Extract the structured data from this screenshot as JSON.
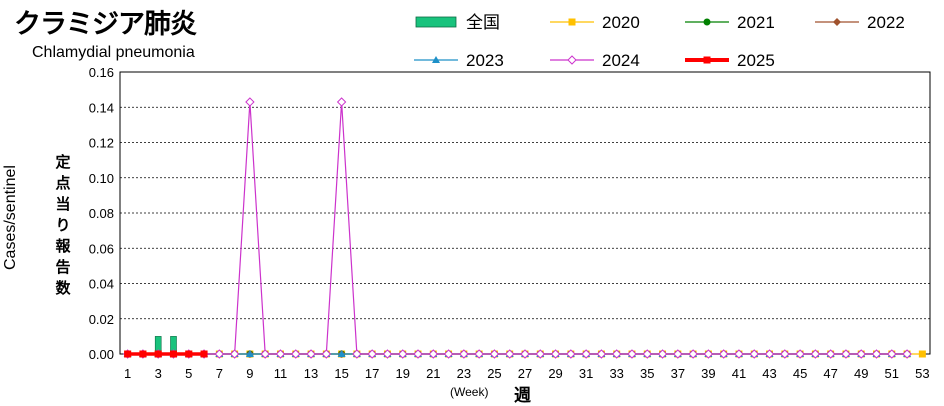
{
  "title_jp": "クラミジア肺炎",
  "title_en": "Chlamydial pneumonia",
  "chart_data": {
    "type": "line",
    "ylabel_en": "Cases/sentinel",
    "ylabel_jp": "定点当り報告数",
    "xunit_en": "(Week)",
    "xunit_jp": "週",
    "ylim": [
      0,
      0.16
    ],
    "y_ticks": [
      "0.00",
      "0.02",
      "0.04",
      "0.06",
      "0.08",
      "0.10",
      "0.12",
      "0.14",
      "0.16"
    ],
    "x_ticks": [
      "1",
      "3",
      "5",
      "7",
      "9",
      "11",
      "13",
      "15",
      "17",
      "19",
      "21",
      "23",
      "25",
      "27",
      "29",
      "31",
      "33",
      "35",
      "37",
      "39",
      "41",
      "43",
      "45",
      "47",
      "49",
      "51",
      "53"
    ],
    "weeks": 53,
    "grid": true,
    "legend_position": "top",
    "national": {
      "name": "全国",
      "color": "#19c37d",
      "values": [
        0,
        0,
        0.01,
        0.01,
        0,
        0,
        0,
        0,
        0,
        0,
        0,
        0,
        0,
        0,
        0,
        0,
        0,
        0,
        0,
        0,
        0,
        0,
        0,
        0,
        0,
        0,
        0,
        0,
        0,
        0,
        0,
        0,
        0,
        0,
        0,
        0,
        0,
        0,
        0,
        0,
        0,
        0,
        0,
        0,
        0,
        0,
        0,
        0,
        0,
        0,
        0,
        0,
        0
      ]
    },
    "series": [
      {
        "name": "2020",
        "color": "#ffc000",
        "marker": "square",
        "values": [
          0,
          0,
          0,
          0,
          0,
          0,
          0,
          0,
          0,
          0,
          0,
          0,
          0,
          0,
          0,
          0,
          0,
          0,
          0,
          0,
          0,
          0,
          0,
          0,
          0,
          0,
          0,
          0,
          0,
          0,
          0,
          0,
          0,
          0,
          0,
          0,
          0,
          0,
          0,
          0,
          0,
          0,
          0,
          0,
          0,
          0,
          0,
          0,
          0,
          0,
          0,
          0,
          0
        ]
      },
      {
        "name": "2021",
        "color": "#008000",
        "marker": "circle",
        "values": [
          0,
          0,
          0,
          0,
          0,
          0,
          0,
          0,
          0,
          0,
          0,
          0,
          0,
          0,
          0,
          0,
          0,
          0,
          0,
          0,
          0,
          0,
          0,
          0,
          0,
          0,
          0,
          0,
          0,
          0,
          0,
          0,
          0,
          0,
          0,
          0,
          0,
          0,
          0,
          0,
          0,
          0,
          0,
          0,
          0,
          0,
          0,
          0,
          0,
          0,
          0,
          0
        ]
      },
      {
        "name": "2022",
        "color": "#a0522d",
        "marker": "diamond",
        "values": [
          0,
          0,
          0,
          0,
          0,
          0,
          0,
          0,
          0,
          0,
          0,
          0,
          0,
          0,
          0,
          0,
          0,
          0,
          0,
          0,
          0,
          0,
          0,
          0,
          0,
          0,
          0,
          0,
          0,
          0,
          0,
          0,
          0,
          0,
          0,
          0,
          0,
          0,
          0,
          0,
          0,
          0,
          0,
          0,
          0,
          0,
          0,
          0,
          0,
          0,
          0,
          0
        ]
      },
      {
        "name": "2023",
        "color": "#1e90c8",
        "marker": "triangle",
        "values": [
          0,
          0,
          0,
          0,
          0,
          0,
          0,
          0,
          0,
          0,
          0,
          0,
          0,
          0,
          0,
          0,
          0,
          0,
          0,
          0,
          0,
          0,
          0,
          0,
          0,
          0,
          0,
          0,
          0,
          0,
          0,
          0,
          0,
          0,
          0,
          0,
          0,
          0,
          0,
          0,
          0,
          0,
          0,
          0,
          0,
          0,
          0,
          0,
          0,
          0,
          0,
          0
        ]
      },
      {
        "name": "2024",
        "color": "#cc33cc",
        "marker": "open-diamond",
        "values": [
          0,
          0,
          0,
          0,
          0,
          0,
          0,
          0,
          0.143,
          0,
          0,
          0,
          0,
          0,
          0.143,
          0,
          0,
          0,
          0,
          0,
          0,
          0,
          0,
          0,
          0,
          0,
          0,
          0,
          0,
          0,
          0,
          0,
          0,
          0,
          0,
          0,
          0,
          0,
          0,
          0,
          0,
          0,
          0,
          0,
          0,
          0,
          0,
          0,
          0,
          0,
          0,
          0
        ]
      },
      {
        "name": "2025",
        "color": "#ff0000",
        "marker": "square",
        "values": [
          0,
          0,
          0,
          0,
          0,
          0
        ]
      }
    ]
  }
}
